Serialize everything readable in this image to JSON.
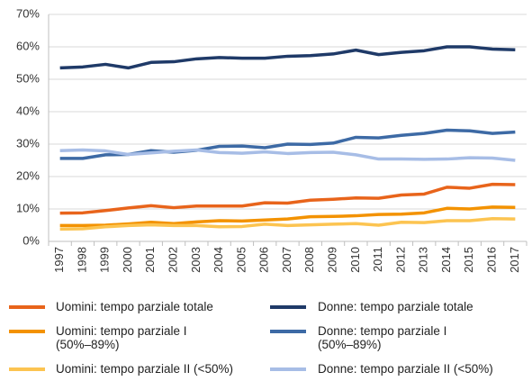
{
  "chart_data": {
    "type": "line",
    "categories": [
      "1997",
      "1998",
      "1999",
      "2000",
      "2001",
      "2002",
      "2003",
      "2004",
      "2005",
      "2006",
      "2007",
      "2008",
      "2009",
      "2010",
      "2011",
      "2012",
      "2013",
      "2014",
      "2015",
      "2016",
      "2017"
    ],
    "ylim": [
      0,
      70
    ],
    "yticks": [
      {
        "value": 0,
        "label": "0%"
      },
      {
        "value": 10,
        "label": "10%"
      },
      {
        "value": 20,
        "label": "20%"
      },
      {
        "value": 30,
        "label": "30%"
      },
      {
        "value": 40,
        "label": "40%"
      },
      {
        "value": 50,
        "label": "50%"
      },
      {
        "value": 60,
        "label": "60%"
      },
      {
        "value": 70,
        "label": "70%"
      }
    ],
    "grid": true,
    "series": [
      {
        "name": "Uomini: tempo parziale totale",
        "color": "#e8641b",
        "values": [
          8.7,
          8.8,
          9.5,
          10.3,
          11.0,
          10.4,
          10.9,
          10.9,
          10.9,
          11.9,
          11.8,
          12.7,
          13.0,
          13.4,
          13.3,
          14.3,
          14.6,
          16.7,
          16.4,
          17.6,
          17.5
        ]
      },
      {
        "name": "Uomini: tempo parziale I\n(50%–89%)",
        "color": "#f39200",
        "values": [
          4.9,
          4.9,
          5.0,
          5.4,
          5.9,
          5.5,
          6.0,
          6.4,
          6.3,
          6.6,
          6.9,
          7.6,
          7.7,
          7.9,
          8.3,
          8.4,
          8.8,
          10.2,
          10.0,
          10.6,
          10.5
        ]
      },
      {
        "name": "Uomini: tempo parziale II (<50%)",
        "color": "#fcc451",
        "values": [
          3.8,
          3.9,
          4.5,
          4.9,
          5.1,
          4.9,
          4.9,
          4.5,
          4.6,
          5.3,
          4.9,
          5.1,
          5.3,
          5.5,
          5.0,
          5.9,
          5.8,
          6.4,
          6.4,
          7.0,
          6.9
        ]
      },
      {
        "name": "Donne: tempo parziale totale",
        "color": "#1f3a68",
        "values": [
          53.5,
          53.8,
          54.6,
          53.5,
          55.2,
          55.4,
          56.3,
          56.7,
          56.5,
          56.5,
          57.1,
          57.3,
          57.8,
          59.0,
          57.6,
          58.3,
          58.8,
          60.0,
          60.0,
          59.3,
          59.1
        ]
      },
      {
        "name": "Donne: tempo parziale I\n (50%–89%)",
        "color": "#3d6aa5",
        "values": [
          25.6,
          25.6,
          26.7,
          26.8,
          28.0,
          27.5,
          28.1,
          29.3,
          29.4,
          28.9,
          30.0,
          29.9,
          30.3,
          32.1,
          31.9,
          32.7,
          33.3,
          34.3,
          34.1,
          33.3,
          33.7
        ]
      },
      {
        "name": "Donne: tempo parziale II (<50%)",
        "color": "#a7bde6",
        "values": [
          28.0,
          28.2,
          27.9,
          26.8,
          27.3,
          27.8,
          28.2,
          27.4,
          27.2,
          27.6,
          27.1,
          27.4,
          27.5,
          26.7,
          25.4,
          25.4,
          25.3,
          25.4,
          25.8,
          25.7,
          25.0
        ]
      }
    ]
  }
}
